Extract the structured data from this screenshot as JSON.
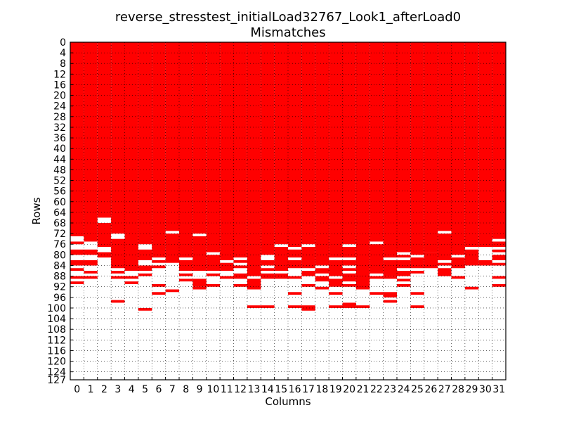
{
  "chart_data": {
    "type": "heatmap",
    "title": "reverse_stresstest_initialLoad32767_Look1_afterLoad0",
    "subtitle": "Mismatches",
    "xlabel": "Columns",
    "ylabel": "Rows",
    "xlim": [
      0,
      32
    ],
    "ylim": [
      0,
      127
    ],
    "grid": true,
    "x_ticks": [
      "0",
      "1",
      "2",
      "3",
      "4",
      "5",
      "6",
      "7",
      "8",
      "9",
      "10",
      "11",
      "12",
      "13",
      "14",
      "15",
      "16",
      "17",
      "18",
      "19",
      "20",
      "21",
      "22",
      "23",
      "24",
      "25",
      "26",
      "27",
      "28",
      "29",
      "30",
      "31"
    ],
    "y_ticks": [
      "0",
      "4",
      "8",
      "12",
      "16",
      "20",
      "24",
      "28",
      "32",
      "36",
      "40",
      "44",
      "48",
      "52",
      "56",
      "60",
      "64",
      "68",
      "72",
      "76",
      "80",
      "84",
      "88",
      "92",
      "96",
      "100",
      "104",
      "108",
      "112",
      "116",
      "120",
      "124",
      "127"
    ],
    "mismatch_color": "#ff0000",
    "match_color": "#ffffff",
    "columns": [
      {
        "column": 0,
        "mismatch_rows": [
          [
            0,
            73
          ],
          [
            75,
            76
          ],
          [
            78,
            80
          ],
          [
            82,
            84
          ],
          [
            85,
            86
          ],
          [
            88,
            89
          ],
          [
            90,
            91
          ]
        ]
      },
      {
        "column": 1,
        "mismatch_rows": [
          [
            0,
            75
          ],
          [
            78,
            80
          ],
          [
            82,
            84
          ],
          [
            86,
            87
          ],
          [
            88,
            89
          ]
        ]
      },
      {
        "column": 2,
        "mismatch_rows": [
          [
            0,
            66
          ],
          [
            68,
            77
          ],
          [
            79,
            81
          ]
        ]
      },
      {
        "column": 3,
        "mismatch_rows": [
          [
            0,
            72
          ],
          [
            74,
            85
          ],
          [
            86,
            87
          ],
          [
            88,
            89
          ],
          [
            97,
            98
          ]
        ]
      },
      {
        "column": 4,
        "mismatch_rows": [
          [
            0,
            86
          ],
          [
            88,
            89
          ],
          [
            90,
            91
          ]
        ]
      },
      {
        "column": 5,
        "mismatch_rows": [
          [
            0,
            76
          ],
          [
            78,
            82
          ],
          [
            84,
            86
          ],
          [
            87,
            88
          ],
          [
            100,
            101
          ]
        ]
      },
      {
        "column": 6,
        "mismatch_rows": [
          [
            0,
            81
          ],
          [
            82,
            83
          ],
          [
            84,
            85
          ],
          [
            91,
            92
          ],
          [
            94,
            95
          ]
        ]
      },
      {
        "column": 7,
        "mismatch_rows": [
          [
            0,
            71
          ],
          [
            72,
            83
          ],
          [
            93,
            94
          ]
        ]
      },
      {
        "column": 8,
        "mismatch_rows": [
          [
            0,
            81
          ],
          [
            82,
            86
          ],
          [
            87,
            88
          ],
          [
            89,
            90
          ]
        ]
      },
      {
        "column": 9,
        "mismatch_rows": [
          [
            0,
            72
          ],
          [
            73,
            86
          ],
          [
            89,
            92
          ],
          [
            92,
            93
          ]
        ]
      },
      {
        "column": 10,
        "mismatch_rows": [
          [
            0,
            79
          ],
          [
            80,
            86
          ],
          [
            87,
            88
          ],
          [
            91,
            92
          ]
        ]
      },
      {
        "column": 11,
        "mismatch_rows": [
          [
            0,
            82
          ],
          [
            83,
            86
          ],
          [
            88,
            89
          ]
        ]
      },
      {
        "column": 12,
        "mismatch_rows": [
          [
            0,
            81
          ],
          [
            82,
            83
          ],
          [
            84,
            85
          ],
          [
            87,
            89
          ],
          [
            91,
            92
          ]
        ]
      },
      {
        "column": 13,
        "mismatch_rows": [
          [
            0,
            88
          ],
          [
            89,
            93
          ],
          [
            99,
            100
          ]
        ]
      },
      {
        "column": 14,
        "mismatch_rows": [
          [
            0,
            80
          ],
          [
            82,
            84
          ],
          [
            85,
            86
          ],
          [
            87,
            89
          ],
          [
            99,
            100
          ]
        ]
      },
      {
        "column": 15,
        "mismatch_rows": [
          [
            0,
            76
          ],
          [
            77,
            86
          ],
          [
            87,
            89
          ]
        ]
      },
      {
        "column": 16,
        "mismatch_rows": [
          [
            0,
            77
          ],
          [
            78,
            81
          ],
          [
            82,
            85
          ],
          [
            88,
            89
          ],
          [
            94,
            95
          ],
          [
            99,
            100
          ]
        ]
      },
      {
        "column": 17,
        "mismatch_rows": [
          [
            0,
            76
          ],
          [
            77,
            85
          ],
          [
            86,
            88
          ],
          [
            91,
            92
          ],
          [
            99,
            101
          ]
        ]
      },
      {
        "column": 18,
        "mismatch_rows": [
          [
            0,
            84
          ],
          [
            85,
            87
          ],
          [
            88,
            90
          ],
          [
            92,
            93
          ]
        ]
      },
      {
        "column": 19,
        "mismatch_rows": [
          [
            0,
            81
          ],
          [
            82,
            88
          ],
          [
            89,
            92
          ],
          [
            94,
            95
          ],
          [
            99,
            100
          ]
        ]
      },
      {
        "column": 20,
        "mismatch_rows": [
          [
            0,
            76
          ],
          [
            77,
            81
          ],
          [
            82,
            84
          ],
          [
            85,
            86
          ],
          [
            87,
            90
          ],
          [
            91,
            92
          ],
          [
            98,
            100
          ]
        ]
      },
      {
        "column": 21,
        "mismatch_rows": [
          [
            0,
            93
          ],
          [
            99,
            100
          ]
        ]
      },
      {
        "column": 22,
        "mismatch_rows": [
          [
            0,
            75
          ],
          [
            76,
            87
          ],
          [
            88,
            89
          ],
          [
            94,
            95
          ]
        ]
      },
      {
        "column": 23,
        "mismatch_rows": [
          [
            0,
            81
          ],
          [
            82,
            88
          ],
          [
            88,
            89
          ],
          [
            94,
            96
          ],
          [
            97,
            98
          ]
        ]
      },
      {
        "column": 24,
        "mismatch_rows": [
          [
            0,
            79
          ],
          [
            80,
            81
          ],
          [
            82,
            85
          ],
          [
            86,
            88
          ],
          [
            89,
            90
          ],
          [
            91,
            92
          ]
        ]
      },
      {
        "column": 25,
        "mismatch_rows": [
          [
            0,
            80
          ],
          [
            81,
            85
          ],
          [
            86,
            87
          ],
          [
            94,
            95
          ],
          [
            99,
            100
          ]
        ]
      },
      {
        "column": 26,
        "mismatch_rows": [
          [
            0,
            79
          ],
          [
            79,
            85
          ]
        ]
      },
      {
        "column": 27,
        "mismatch_rows": [
          [
            0,
            71
          ],
          [
            72,
            82
          ],
          [
            83,
            84
          ],
          [
            85,
            88
          ]
        ]
      },
      {
        "column": 28,
        "mismatch_rows": [
          [
            0,
            80
          ],
          [
            81,
            85
          ],
          [
            88,
            89
          ]
        ]
      },
      {
        "column": 29,
        "mismatch_rows": [
          [
            0,
            77
          ],
          [
            78,
            84
          ],
          [
            92,
            93
          ]
        ]
      },
      {
        "column": 30,
        "mismatch_rows": [
          [
            0,
            77
          ],
          [
            82,
            84
          ]
        ]
      },
      {
        "column": 31,
        "mismatch_rows": [
          [
            0,
            74
          ],
          [
            75,
            77
          ],
          [
            78,
            79
          ],
          [
            80,
            82
          ],
          [
            83,
            84
          ],
          [
            88,
            89
          ],
          [
            91,
            92
          ]
        ]
      }
    ]
  }
}
